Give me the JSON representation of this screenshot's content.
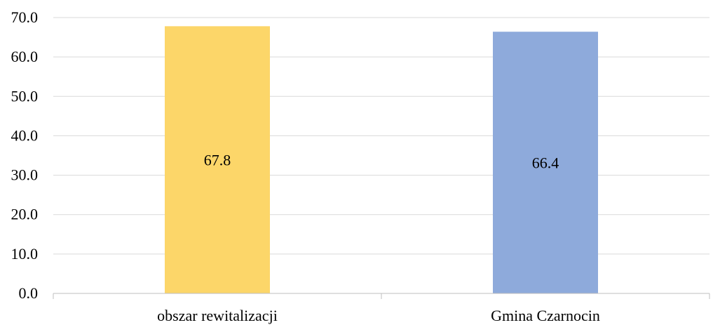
{
  "chart_data": {
    "type": "bar",
    "categories": [
      "obszar rewitalizacji",
      "Gmina Czarnocin"
    ],
    "values": [
      67.8,
      66.4
    ],
    "value_labels": [
      "67.8",
      "66.4"
    ],
    "colors": [
      "#fcd669",
      "#8eaadb"
    ],
    "ylim": [
      0,
      70
    ],
    "y_ticks": [
      "0.0",
      "10.0",
      "20.0",
      "30.0",
      "40.0",
      "50.0",
      "60.0",
      "70.0"
    ],
    "y_tick_values": [
      0,
      10,
      20,
      30,
      40,
      50,
      60,
      70
    ],
    "title": "",
    "xlabel": "",
    "ylabel": "",
    "grid": true,
    "legend": "none"
  }
}
